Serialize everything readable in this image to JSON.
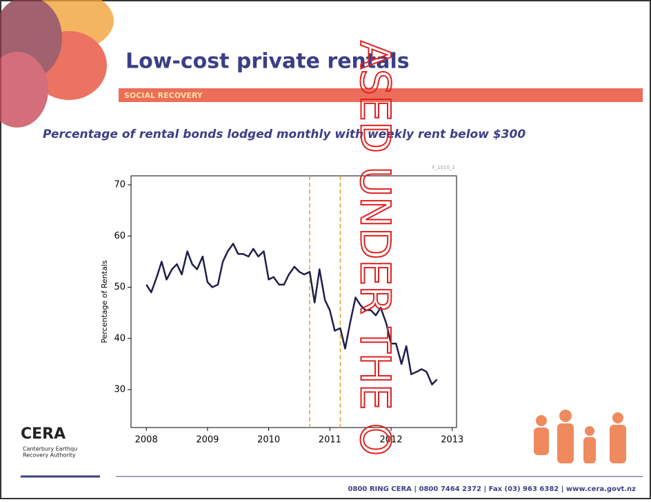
{
  "slide": {
    "title": "Low-cost private rentals",
    "section": "SOCIAL RECOVERY",
    "subtitle": "Percentage of rental bonds lodged monthly with weekly rent below $300",
    "logo": {
      "name": "CERA",
      "line1": "Canterbury Earthqu",
      "line2": "Recovery Authority"
    },
    "footer": "0800 RING CERA  |  0800 7464 2372  |  Fax (03) 963 6382  |  www.cera.govt.nz",
    "watermark": "ASED UNDER THE O"
  },
  "chart_data": {
    "type": "line",
    "ylabel": "Percentage of Rentals",
    "annotation": "F_1010_1",
    "color": "#1c1f4a",
    "vline_color": "#e0a020",
    "x": [
      2008,
      2008.08,
      2008.17,
      2008.25,
      2008.33,
      2008.42,
      2008.5,
      2008.58,
      2008.67,
      2008.75,
      2008.83,
      2008.92,
      2009,
      2009.08,
      2009.17,
      2009.25,
      2009.33,
      2009.42,
      2009.5,
      2009.58,
      2009.67,
      2009.75,
      2009.83,
      2009.92,
      2010,
      2010.08,
      2010.17,
      2010.25,
      2010.33,
      2010.42,
      2010.5,
      2010.58,
      2010.67,
      2010.75,
      2010.83,
      2010.92,
      2011,
      2011.08,
      2011.17,
      2011.25,
      2011.33,
      2011.42,
      2011.5,
      2011.58,
      2011.67,
      2011.75,
      2011.83,
      2011.92,
      2012,
      2012.08,
      2012.17,
      2012.25,
      2012.33,
      2012.42,
      2012.5,
      2012.58,
      2012.67,
      2012.75
    ],
    "values": [
      50.5,
      49,
      52,
      55,
      51.5,
      53.5,
      54.5,
      52.5,
      57,
      54.5,
      53.5,
      56,
      51,
      50,
      50.5,
      55,
      57,
      58.5,
      56.5,
      56.5,
      56,
      57.5,
      56,
      57,
      51.5,
      52,
      50.5,
      50.5,
      52.5,
      54,
      53,
      52.5,
      53,
      47,
      53.5,
      47.5,
      45.5,
      41.5,
      42,
      38,
      43,
      48,
      46.5,
      45.5,
      45.5,
      44.5,
      46,
      43,
      39,
      39,
      35,
      38.5,
      33,
      33.5,
      34,
      33.5,
      31,
      32
    ],
    "vlines": [
      2010.67,
      2011.17
    ],
    "xlim": [
      2007.75,
      2013.07
    ],
    "ylim": [
      22.6,
      71.75
    ],
    "xticks": [
      2008,
      2009,
      2010,
      2011,
      2012,
      2013
    ],
    "yticks": [
      30,
      40,
      50,
      60,
      70
    ]
  }
}
